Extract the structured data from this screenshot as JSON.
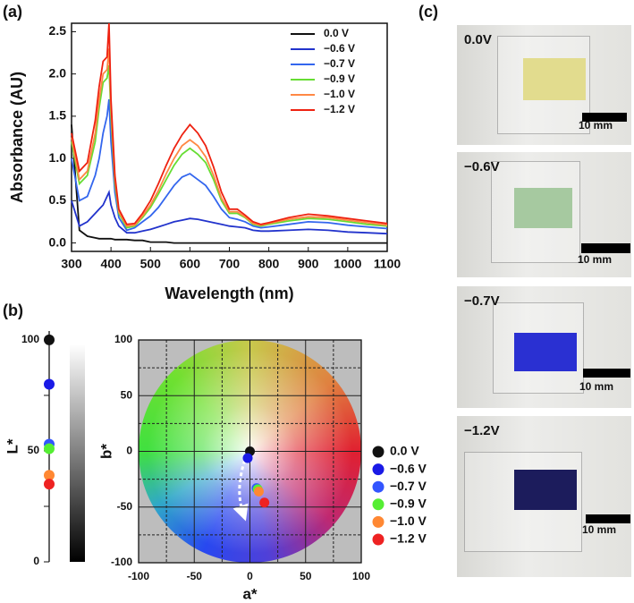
{
  "panel_labels": [
    "(a)",
    "(b)",
    "(c)"
  ],
  "chart_data": [
    {
      "type": "line",
      "xlabel": "Wavelength (nm)",
      "ylabel": "Absorbance (AU)",
      "xlim": [
        300,
        1100
      ],
      "xticks": [
        300,
        400,
        500,
        600,
        700,
        800,
        900,
        1000,
        1100
      ],
      "ylim": [
        -0.1,
        2.6
      ],
      "yticks": [
        {
          "value": 0,
          "label": "0.0"
        },
        0.5,
        {
          "value": 1,
          "label": "1.0"
        },
        1.5,
        {
          "value": 2,
          "label": "2.0"
        },
        2.5
      ],
      "legend": "upper right",
      "x": [
        300,
        320,
        340,
        360,
        370,
        380,
        390,
        395,
        400,
        410,
        420,
        440,
        460,
        480,
        500,
        520,
        540,
        560,
        580,
        600,
        620,
        640,
        660,
        680,
        700,
        720,
        740,
        760,
        780,
        800,
        850,
        900,
        950,
        1000,
        1050,
        1100
      ],
      "series": [
        {
          "name": "0.0 V",
          "color": "#111111",
          "values": [
            1.4,
            0.15,
            0.08,
            0.06,
            0.05,
            0.05,
            0.05,
            0.05,
            0.05,
            0.04,
            0.04,
            0.04,
            0.03,
            0.03,
            0.01,
            0.01,
            0.01,
            0,
            0,
            0,
            0,
            0,
            0,
            0,
            0,
            0,
            0,
            0,
            0,
            0,
            0,
            0,
            0,
            0,
            0,
            0
          ]
        },
        {
          "name": "−0.6 V",
          "color": "#2233cc",
          "values": [
            0.5,
            0.2,
            0.25,
            0.35,
            0.4,
            0.45,
            0.55,
            0.6,
            0.45,
            0.3,
            0.2,
            0.12,
            0.12,
            0.14,
            0.16,
            0.19,
            0.22,
            0.25,
            0.27,
            0.29,
            0.28,
            0.26,
            0.24,
            0.22,
            0.2,
            0.19,
            0.18,
            0.15,
            0.14,
            0.14,
            0.15,
            0.16,
            0.15,
            0.13,
            0.12,
            0.11
          ]
        },
        {
          "name": "−0.7 V",
          "color": "#3366ee",
          "values": [
            1.0,
            0.5,
            0.55,
            0.8,
            1.0,
            1.3,
            1.5,
            1.7,
            1.2,
            0.6,
            0.3,
            0.15,
            0.18,
            0.25,
            0.32,
            0.42,
            0.55,
            0.68,
            0.78,
            0.82,
            0.75,
            0.68,
            0.55,
            0.4,
            0.3,
            0.28,
            0.25,
            0.2,
            0.18,
            0.19,
            0.22,
            0.25,
            0.24,
            0.21,
            0.19,
            0.17
          ]
        },
        {
          "name": "−0.9 V",
          "color": "#66dd33",
          "values": [
            1.2,
            0.7,
            0.8,
            1.2,
            1.6,
            1.9,
            1.95,
            2.1,
            1.5,
            0.7,
            0.35,
            0.18,
            0.2,
            0.3,
            0.42,
            0.58,
            0.75,
            0.92,
            1.05,
            1.12,
            1.05,
            0.95,
            0.75,
            0.5,
            0.35,
            0.35,
            0.3,
            0.22,
            0.2,
            0.22,
            0.26,
            0.29,
            0.28,
            0.25,
            0.22,
            0.2
          ]
        },
        {
          "name": "−1.0 V",
          "color": "#ff8844",
          "values": [
            1.25,
            0.75,
            0.85,
            1.3,
            1.7,
            2.0,
            2.05,
            2.3,
            1.6,
            0.75,
            0.37,
            0.2,
            0.21,
            0.32,
            0.45,
            0.62,
            0.82,
            1.0,
            1.15,
            1.22,
            1.15,
            1.02,
            0.8,
            0.53,
            0.37,
            0.37,
            0.31,
            0.23,
            0.21,
            0.23,
            0.28,
            0.31,
            0.3,
            0.27,
            0.24,
            0.21
          ]
        },
        {
          "name": "−1.2 V",
          "color": "#ee2211",
          "values": [
            1.3,
            0.85,
            0.95,
            1.45,
            1.85,
            2.15,
            2.2,
            2.6,
            1.7,
            0.8,
            0.4,
            0.22,
            0.23,
            0.35,
            0.5,
            0.7,
            0.92,
            1.12,
            1.28,
            1.4,
            1.3,
            1.15,
            0.9,
            0.6,
            0.4,
            0.4,
            0.33,
            0.25,
            0.22,
            0.24,
            0.3,
            0.34,
            0.32,
            0.29,
            0.26,
            0.23
          ]
        }
      ]
    },
    {
      "type": "strip",
      "ylabel": "L*",
      "ylim": [
        0,
        104
      ],
      "yticks": [
        0,
        50,
        100
      ],
      "yminor_ticks": [
        25,
        75
      ],
      "values": [
        100,
        80,
        53,
        51,
        39,
        35
      ],
      "colors": [
        "#111111",
        "#1a1ae6",
        "#3355ff",
        "#55ee33",
        "#ff8833",
        "#ee2222"
      ]
    },
    {
      "type": "scatter",
      "xlabel": "a*",
      "ylabel": "b*",
      "xlim": [
        -100,
        100
      ],
      "xticks": [
        -100,
        -50,
        0,
        50,
        100
      ],
      "ylim": [
        -100,
        100
      ],
      "yticks": [
        -100,
        -50,
        0,
        50,
        100
      ],
      "minor_grid": [
        -75,
        -25,
        25,
        75
      ],
      "grid": true,
      "legend": "right",
      "series": [
        {
          "name": "0.0 V",
          "color": "#111111",
          "x": [
            0
          ],
          "values": [
            0
          ]
        },
        {
          "name": "−0.6 V",
          "color": "#1a1ae6",
          "x": [
            -2
          ],
          "values": [
            -6
          ]
        },
        {
          "name": "−0.7 V",
          "color": "#3355ff",
          "x": [
            6
          ],
          "values": [
            -33
          ]
        },
        {
          "name": "−0.9 V",
          "color": "#55ee33",
          "x": [
            7
          ],
          "values": [
            -34
          ]
        },
        {
          "name": "−1.0 V",
          "color": "#ff8833",
          "x": [
            8
          ],
          "values": [
            -36
          ]
        },
        {
          "name": "−1.2 V",
          "color": "#ee2222",
          "x": [
            13
          ],
          "values": [
            -46
          ]
        }
      ]
    }
  ],
  "photos": [
    {
      "label": "0.0V",
      "scale": "10 mm",
      "film_color": "#e2dc8e"
    },
    {
      "label": "−0.6V",
      "scale": "10 mm",
      "film_color": "#a6c9a0"
    },
    {
      "label": "−0.7V",
      "scale": "10 mm",
      "film_color": "#2a30d2"
    },
    {
      "label": "−1.2V",
      "scale": "10 mm",
      "film_color": "#1c1c5c"
    }
  ]
}
